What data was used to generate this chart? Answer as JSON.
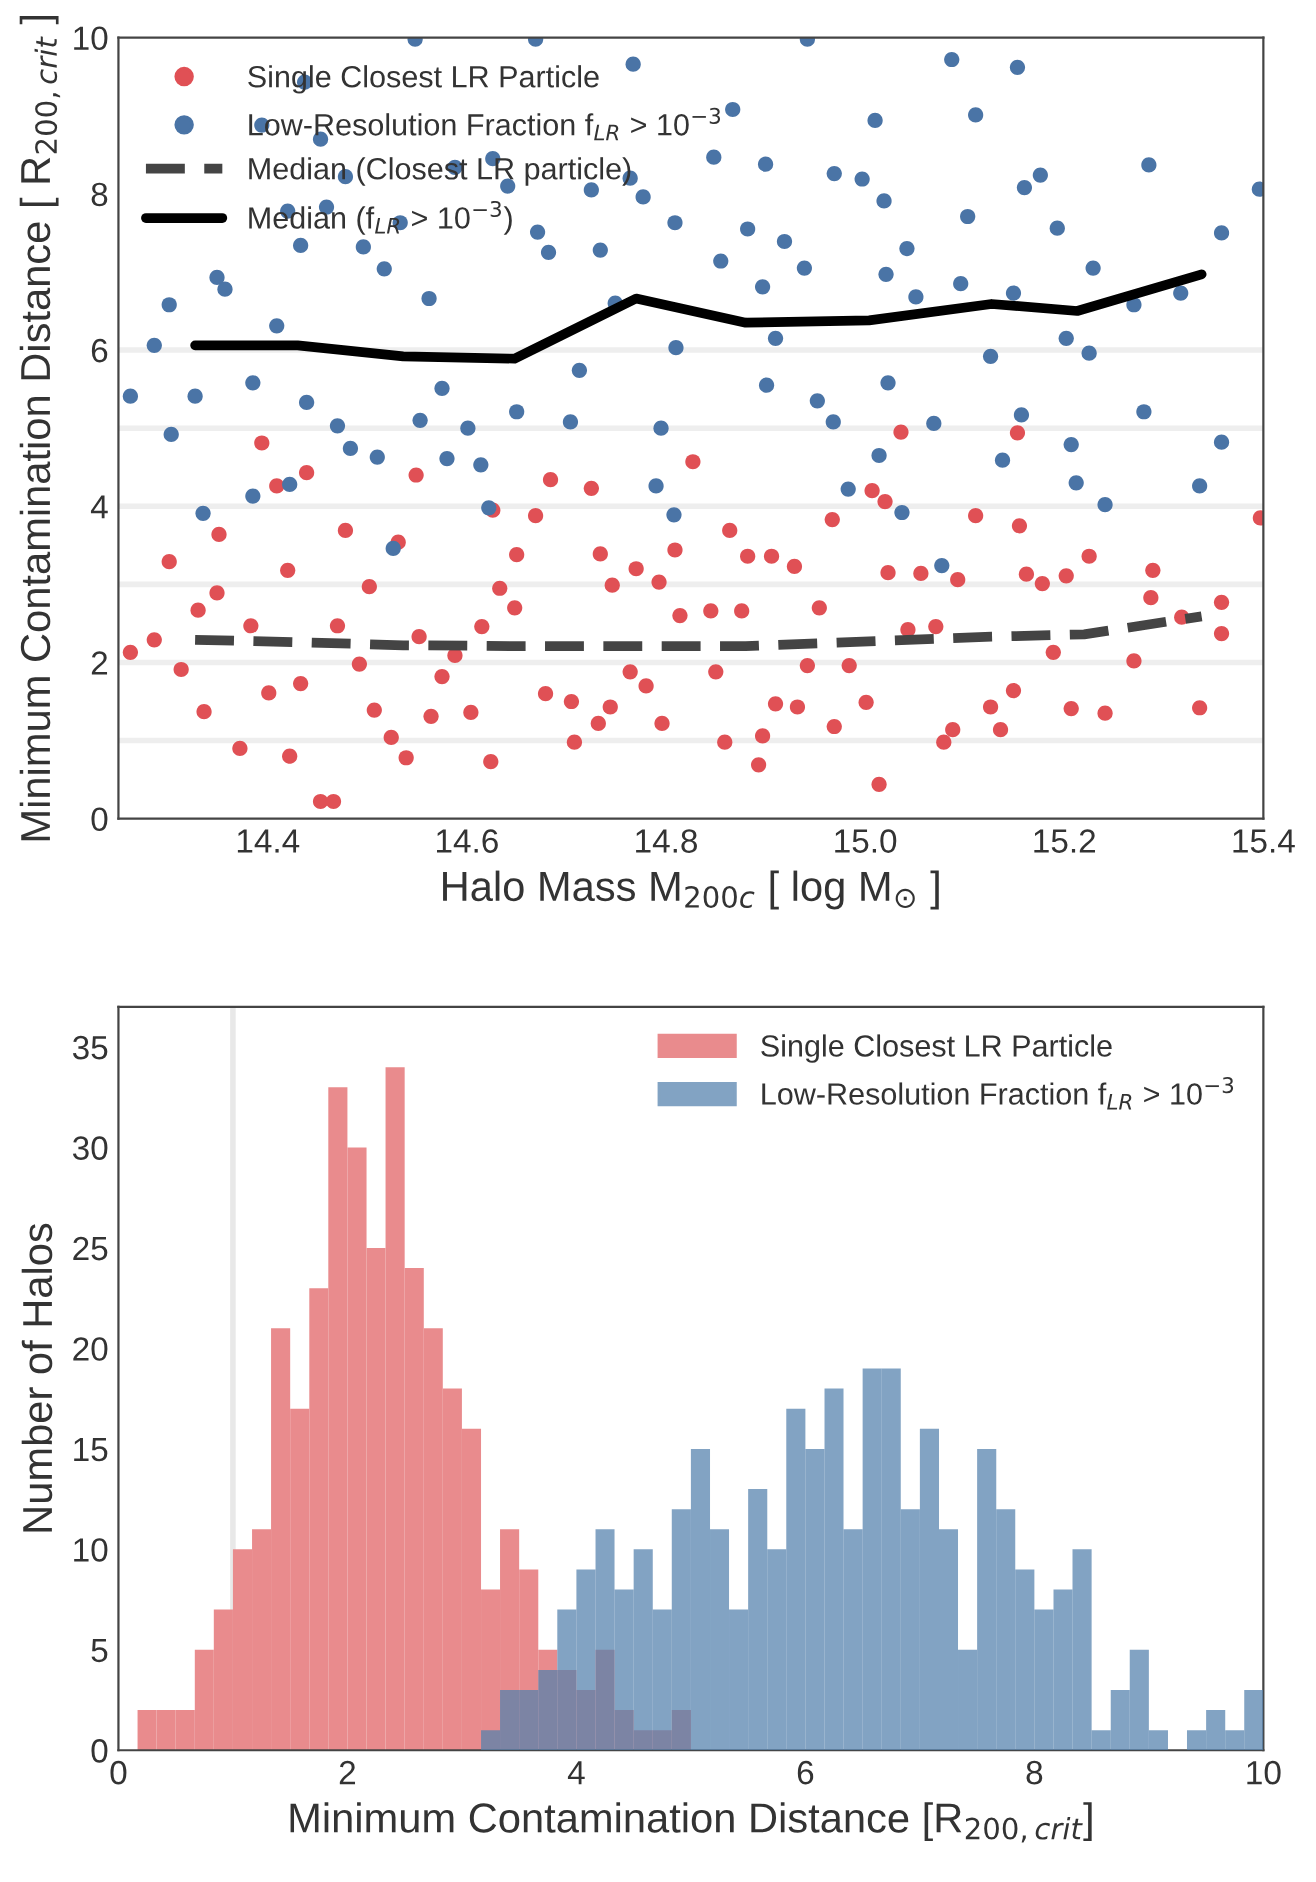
{
  "chart_data": [
    {
      "type": "scatter",
      "xlabel": "Halo Mass M$_{200c}$ [ log M$_{⊙}$ ]",
      "ylabel": "Minimum Contamination Distance [ R$_{200,crit}$ ]",
      "xlim": [
        14.25,
        15.4
      ],
      "xticks": [
        14.4,
        14.6,
        14.8,
        {
          "value": 15,
          "label": "15.0"
        },
        15.2,
        15.4
      ],
      "ylim": [
        0,
        10
      ],
      "yticks": [
        0,
        2,
        4,
        6,
        8,
        10
      ],
      "legend": "top left",
      "grid": false,
      "ref_lines": [
        {
          "axis": "y",
          "value": 1,
          "color": "#eeeeee"
        },
        {
          "axis": "y",
          "value": 2,
          "color": "#eeeeee"
        },
        {
          "axis": "y",
          "value": 3,
          "color": "#eeeeee"
        },
        {
          "axis": "y",
          "value": 4,
          "color": "#eeeeee"
        },
        {
          "axis": "y",
          "value": 5,
          "color": "#eeeeee"
        },
        {
          "axis": "y",
          "value": 6,
          "color": "#eeeeee"
        }
      ],
      "series": [
        {
          "type": "scatter",
          "name": "Single Closest LR Particle",
          "color": "#e05055",
          "marker": "circle",
          "x": [
            14.262,
            14.286,
            14.301,
            14.313,
            14.33,
            14.336,
            14.349,
            14.351,
            14.372,
            14.383,
            14.394,
            14.401,
            14.409,
            14.42,
            14.422,
            14.433,
            14.439,
            14.453,
            14.466,
            14.47,
            14.478,
            14.492,
            14.502,
            14.507,
            14.524,
            14.531,
            14.539,
            14.549,
            14.552,
            14.564,
            14.575,
            14.588,
            14.604,
            14.615,
            14.624,
            14.626,
            14.633,
            14.648,
            14.65,
            14.669,
            14.679,
            14.684,
            14.705,
            14.708,
            14.725,
            14.732,
            14.734,
            14.744,
            14.746,
            14.764,
            14.77,
            14.78,
            14.793,
            14.796,
            14.809,
            14.814,
            14.827,
            14.845,
            14.85,
            14.859,
            14.864,
            14.876,
            14.882,
            14.893,
            14.897,
            14.906,
            14.91,
            14.929,
            14.932,
            14.942,
            14.954,
            14.967,
            14.969,
            14.984,
            15.001,
            15.007,
            15.014,
            15.02,
            15.023,
            15.036,
            15.043,
            15.056,
            15.071,
            15.079,
            15.088,
            15.093,
            15.111,
            15.126,
            15.136,
            15.149,
            15.153,
            15.155,
            15.162,
            15.178,
            15.189,
            15.202,
            15.207,
            15.225,
            15.241,
            15.27,
            15.287,
            15.289,
            15.318,
            15.336,
            15.358,
            15.358,
            15.397
          ],
          "values": [
            2.13,
            2.29,
            3.29,
            1.91,
            2.67,
            1.37,
            2.89,
            3.64,
            0.9,
            2.47,
            4.81,
            1.61,
            4.26,
            3.18,
            0.8,
            1.73,
            4.43,
            0.22,
            0.22,
            2.47,
            3.69,
            1.98,
            2.97,
            1.39,
            1.04,
            3.54,
            0.78,
            4.4,
            2.33,
            1.31,
            1.82,
            2.09,
            1.36,
            2.46,
            0.73,
            3.95,
            2.95,
            2.7,
            3.38,
            3.88,
            1.6,
            4.34,
            1.5,
            0.98,
            4.23,
            1.22,
            3.39,
            1.43,
            2.99,
            1.88,
            3.2,
            1.7,
            3.03,
            1.22,
            3.44,
            2.6,
            4.57,
            2.66,
            1.88,
            0.98,
            3.69,
            2.66,
            3.36,
            0.69,
            1.06,
            3.36,
            1.47,
            3.23,
            1.43,
            1.96,
            2.7,
            3.83,
            1.18,
            1.96,
            1.49,
            4.2,
            0.44,
            4.06,
            3.15,
            4.95,
            2.42,
            3.14,
            2.46,
            0.98,
            1.14,
            3.06,
            3.88,
            1.43,
            1.14,
            1.64,
            4.94,
            3.75,
            3.13,
            3.01,
            2.13,
            3.11,
            1.41,
            3.36,
            1.35,
            2.02,
            2.83,
            3.18,
            2.58,
            1.42,
            2.77,
            2.37,
            3.85
          ]
        },
        {
          "type": "scatter",
          "name": "Low-Resolution Fraction f$_{LR}$ > 10$^{−3}$",
          "color": "#4a74a6",
          "marker": "circle",
          "x": [
            14.262,
            14.286,
            14.301,
            14.303,
            14.327,
            14.335,
            14.349,
            14.357,
            14.385,
            14.385,
            14.394,
            14.409,
            14.42,
            14.422,
            14.433,
            14.437,
            14.439,
            14.453,
            14.459,
            14.47,
            14.478,
            14.483,
            14.496,
            14.51,
            14.517,
            14.526,
            14.533,
            14.548,
            14.553,
            14.562,
            14.575,
            14.58,
            14.588,
            14.601,
            14.614,
            14.622,
            14.626,
            14.641,
            14.65,
            14.669,
            14.671,
            14.682,
            14.704,
            14.713,
            14.725,
            14.734,
            14.749,
            14.764,
            14.767,
            14.777,
            14.79,
            14.795,
            14.809,
            14.81,
            14.808,
            14.848,
            14.855,
            14.867,
            14.882,
            14.897,
            14.9,
            14.901,
            14.91,
            14.919,
            14.939,
            14.942,
            14.952,
            14.968,
            14.969,
            14.983,
            14.997,
            15.01,
            15.014,
            15.019,
            15.021,
            15.023,
            15.037,
            15.042,
            15.051,
            15.069,
            15.077,
            15.087,
            15.096,
            15.103,
            15.111,
            15.126,
            15.138,
            15.149,
            15.153,
            15.157,
            15.16,
            15.176,
            15.193,
            15.202,
            15.207,
            15.212,
            15.225,
            15.229,
            15.241,
            15.27,
            15.28,
            15.285,
            15.317,
            15.336,
            15.358,
            15.358,
            15.396
          ],
          "values": [
            5.41,
            6.06,
            6.58,
            4.92,
            5.41,
            3.91,
            6.93,
            6.78,
            5.58,
            4.13,
            8.88,
            6.31,
            7.78,
            4.28,
            7.34,
            9.43,
            5.33,
            8.7,
            7.83,
            5.03,
            8.22,
            4.74,
            7.32,
            4.63,
            7.04,
            3.46,
            7.63,
            9.98,
            5.1,
            6.66,
            5.51,
            4.61,
            8.34,
            5.0,
            4.53,
            3.98,
            8.45,
            8.1,
            5.21,
            9.98,
            7.51,
            7.25,
            5.08,
            5.74,
            8.05,
            7.28,
            6.6,
            8.2,
            9.66,
            7.96,
            4.26,
            5.0,
            7.63,
            6.03,
            3.89,
            8.47,
            7.14,
            9.08,
            7.55,
            6.81,
            8.38,
            5.55,
            6.15,
            7.39,
            7.05,
            9.98,
            5.35,
            5.08,
            8.26,
            4.22,
            8.19,
            8.94,
            4.65,
            7.91,
            6.97,
            5.58,
            3.92,
            7.3,
            6.68,
            5.06,
            3.24,
            9.72,
            6.85,
            7.71,
            9.01,
            5.92,
            4.59,
            6.73,
            9.62,
            5.17,
            8.08,
            8.24,
            7.56,
            6.15,
            4.79,
            4.3,
            5.96,
            7.05,
            4.02,
            6.58,
            5.21,
            8.37,
            6.73,
            4.26,
            7.5,
            4.82,
            8.06
          ]
        },
        {
          "type": "line",
          "name": "Median (Closest LR particle)",
          "color": "#444444",
          "line_style": "dashed",
          "x": [
            14.327,
            14.43,
            14.536,
            14.648,
            14.77,
            14.88,
            15.004,
            15.127,
            15.22,
            15.338
          ],
          "values": [
            2.29,
            2.26,
            2.22,
            2.21,
            2.21,
            2.21,
            2.27,
            2.33,
            2.36,
            2.59
          ]
        },
        {
          "type": "line",
          "name": "Median (f$_{LR}$ > 10$^{−3}$)",
          "color": "#000000",
          "line_style": "solid",
          "x": [
            14.327,
            14.43,
            14.536,
            14.648,
            14.77,
            14.88,
            15.004,
            15.127,
            15.213,
            15.338
          ],
          "values": [
            6.06,
            6.06,
            5.92,
            5.89,
            6.66,
            6.35,
            6.38,
            6.59,
            6.5,
            6.97
          ]
        }
      ]
    },
    {
      "type": "histogram",
      "xlabel": "Minimum Contamination Distance [R$_{200,crit}$]",
      "ylabel": "Number of Halos",
      "bins": [
        0.167,
        0.333,
        0.5,
        0.667,
        0.833,
        1.0,
        1.167,
        1.333,
        1.5,
        1.667,
        1.833,
        2.0,
        2.167,
        2.333,
        2.5,
        2.667,
        2.833,
        3.0,
        3.167,
        3.333,
        3.5,
        3.667,
        3.833,
        4.0,
        4.167,
        4.333,
        4.5,
        4.667,
        4.833,
        5.0,
        5.167,
        5.333,
        5.5,
        5.667,
        5.833,
        6.0,
        6.167,
        6.333,
        6.5,
        6.667,
        6.833,
        7.0,
        7.167,
        7.333,
        7.5,
        7.667,
        7.833,
        8.0,
        8.167,
        8.333,
        8.5,
        8.667,
        8.833,
        9.0,
        9.167,
        9.333,
        9.5,
        9.667,
        9.833,
        10.0
      ],
      "xlim": [
        0,
        10
      ],
      "xticks": [
        0,
        2,
        4,
        6,
        8,
        10
      ],
      "ylim": [
        0,
        37
      ],
      "yticks": [
        0,
        5,
        10,
        15,
        20,
        25,
        30,
        35
      ],
      "legend": "top right",
      "grid": false,
      "ref_lines": [
        {
          "axis": "x",
          "value": 1,
          "color": "#e8e8e8"
        }
      ],
      "series": [
        {
          "name": "Single Closest LR Particle",
          "color": "#e98b8d",
          "values": [
            2,
            2,
            2,
            5,
            7,
            10,
            11,
            21,
            17,
            23,
            33,
            30,
            25,
            34,
            24,
            21,
            18,
            16,
            8,
            11,
            9,
            5,
            4,
            3,
            5,
            2,
            1,
            1,
            2,
            0,
            0,
            0,
            0,
            0,
            0,
            0,
            0,
            0,
            0,
            0,
            0,
            0,
            0,
            0,
            0,
            0,
            0,
            0,
            0,
            0,
            0,
            0,
            0,
            0,
            0,
            0,
            0,
            0,
            0
          ]
        },
        {
          "name": "Low-Resolution Fraction f$_{LR}$ > 10$^{−3}$",
          "color": "#82a3c3",
          "values": [
            0,
            0,
            0,
            0,
            0,
            0,
            0,
            0,
            0,
            0,
            0,
            0,
            0,
            0,
            0,
            0,
            0,
            0,
            1,
            3,
            3,
            4,
            7,
            9,
            11,
            8,
            10,
            7,
            12,
            15,
            11,
            7,
            13,
            10,
            17,
            15,
            18,
            11,
            19,
            19,
            12,
            16,
            11,
            5,
            15,
            12,
            9,
            7,
            8,
            10,
            1,
            3,
            5,
            1,
            0,
            1,
            2,
            1,
            3
          ]
        }
      ]
    }
  ]
}
